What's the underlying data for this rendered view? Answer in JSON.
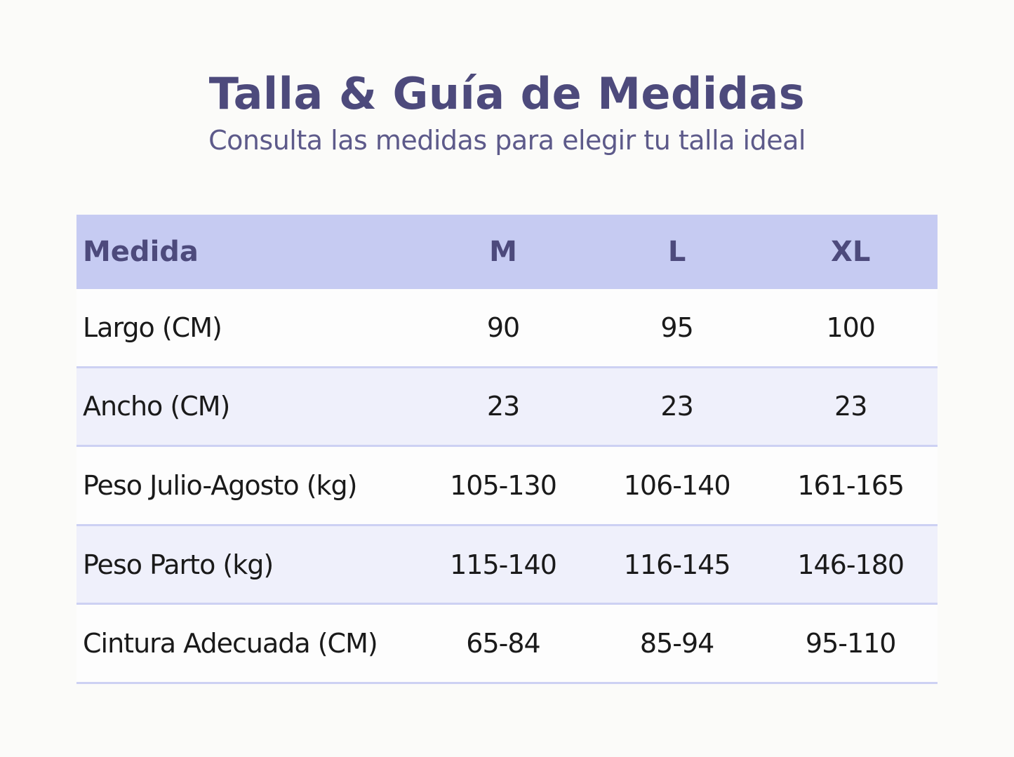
{
  "header": {
    "title": "Talla & Guía de Medidas",
    "subtitle": "Consulta las medidas para elegir tu talla ideal"
  },
  "table": {
    "columns": [
      "Medida",
      "M",
      "L",
      "XL"
    ],
    "rows": [
      {
        "label": "Largo (CM)",
        "values": [
          "90",
          "95",
          "100"
        ]
      },
      {
        "label": "Ancho (CM)",
        "values": [
          "23",
          "23",
          "23"
        ]
      },
      {
        "label": "Peso Julio-Agosto (kg)",
        "values": [
          "105-130",
          "106-140",
          "161-165"
        ]
      },
      {
        "label": "Peso Parto (kg)",
        "values": [
          "115-140",
          "116-145",
          "146-180"
        ]
      },
      {
        "label": "Cintura Adecuada (CM)",
        "values": [
          "65-84",
          "85-94",
          "95-110"
        ]
      }
    ]
  },
  "colors": {
    "title": "#4d4a7c",
    "header_row": "#c6cbf2",
    "alt_row": "#eff0fb",
    "divider": "#cdd1f3"
  }
}
